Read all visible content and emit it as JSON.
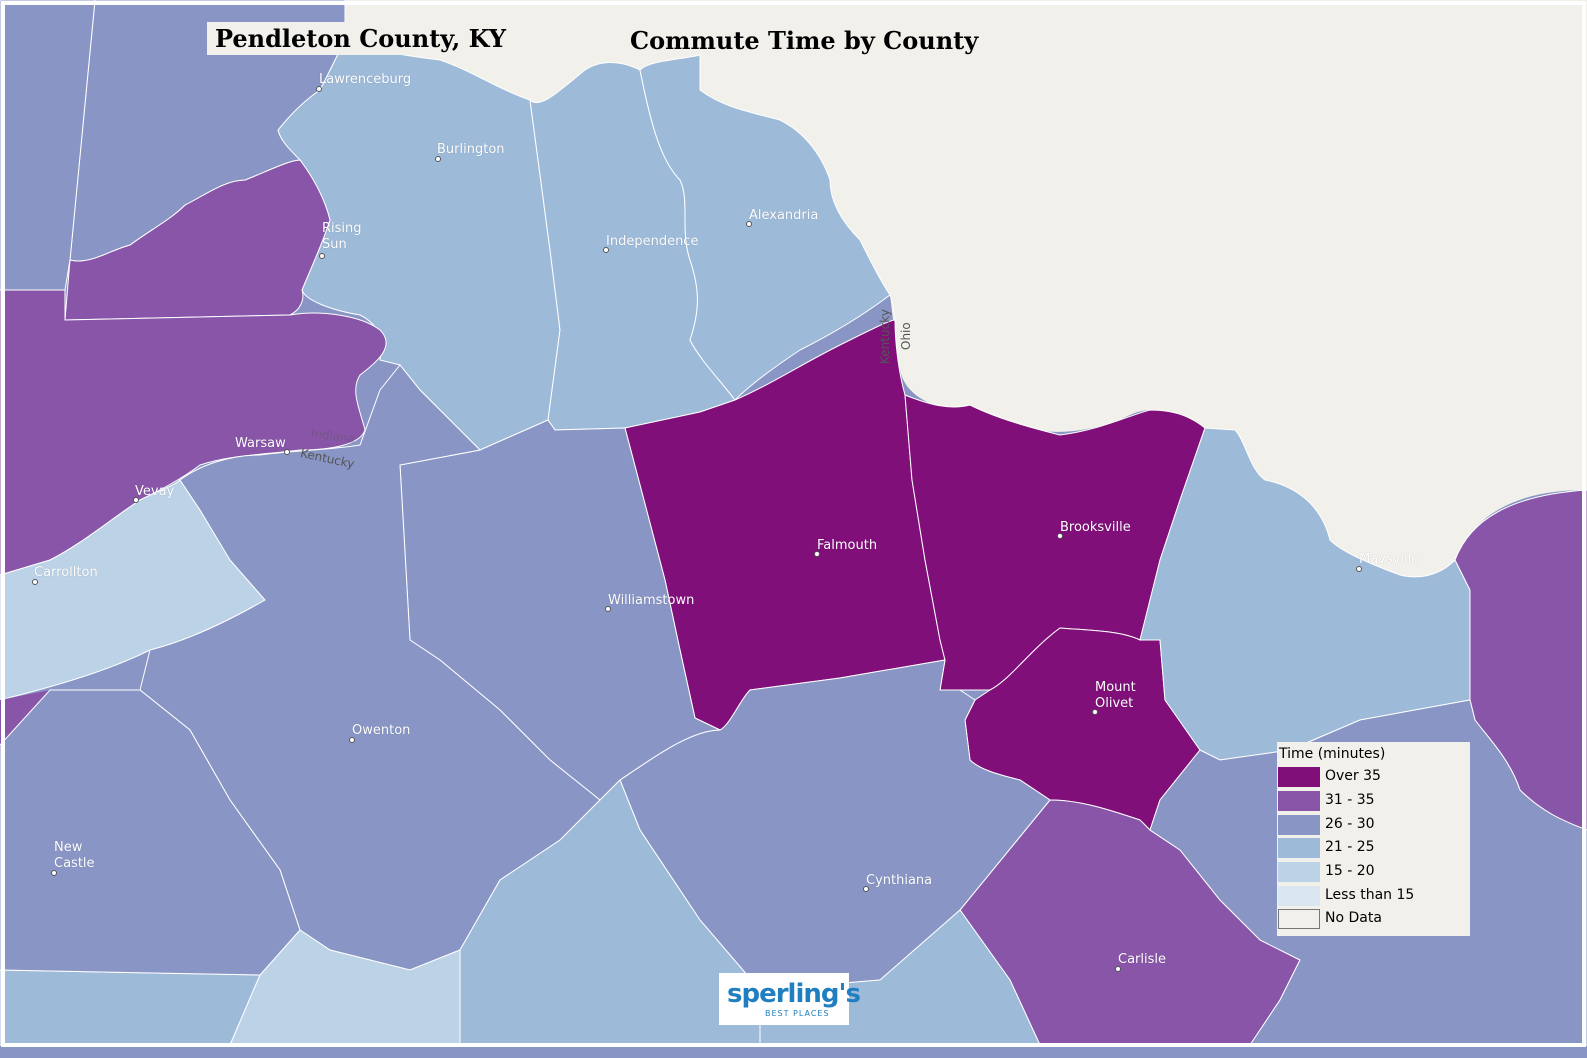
{
  "header": {
    "county_title": "Pendleton County, KY",
    "map_title": "Commute Time by County"
  },
  "colors": {
    "over_35": "#800f7a",
    "c31_35": "#8855a8",
    "c26_30": "#8995c5",
    "c21_25": "#9dbad9",
    "c15_20": "#bcd2e6",
    "less_15": "#dbe7f0",
    "no_data": "#f2f0eb"
  },
  "cities": [
    {
      "id": "lawrenceburg",
      "label": "Lawrenceburg"
    },
    {
      "id": "burlington",
      "label": "Burlington"
    },
    {
      "id": "rising-sun",
      "label": "Rising\nSun"
    },
    {
      "id": "independence",
      "label": "Independence"
    },
    {
      "id": "alexandria",
      "label": "Alexandria"
    },
    {
      "id": "warsaw",
      "label": "Warsaw"
    },
    {
      "id": "vevay",
      "label": "Vevay"
    },
    {
      "id": "carrollton",
      "label": "Carrollton"
    },
    {
      "id": "falmouth",
      "label": "Falmouth"
    },
    {
      "id": "brooksville",
      "label": "Brooksville"
    },
    {
      "id": "maysville",
      "label": "Maysville"
    },
    {
      "id": "williamstown",
      "label": "Williamstown"
    },
    {
      "id": "mount-olivet",
      "label": "Mount\nOlivet"
    },
    {
      "id": "owenton",
      "label": "Owenton"
    },
    {
      "id": "new-castle",
      "label": "New\nCastle"
    },
    {
      "id": "cynthiana",
      "label": "Cynthiana"
    },
    {
      "id": "carlisle",
      "label": "Carlisle"
    }
  ],
  "state_labels": {
    "kentucky_river": "Kentucky",
    "indiana_faint": "Indiana",
    "kentucky_border": "Kentucky",
    "ohio_border": "Ohio"
  },
  "legend": {
    "title": "Time (minutes)",
    "items": [
      {
        "label": "Over 35",
        "color": "#800f7a"
      },
      {
        "label": "31 - 35",
        "color": "#8855a8"
      },
      {
        "label": "26 - 30",
        "color": "#8995c5"
      },
      {
        "label": "21 - 25",
        "color": "#9dbad9"
      },
      {
        "label": "15 - 20",
        "color": "#bcd2e6"
      },
      {
        "label": "Less than 15",
        "color": "#dbe7f0"
      },
      {
        "label": "No Data",
        "color": "#f2f0eb"
      }
    ]
  },
  "logo": {
    "brand": "sperling's",
    "tagline": "BEST PLACES"
  }
}
